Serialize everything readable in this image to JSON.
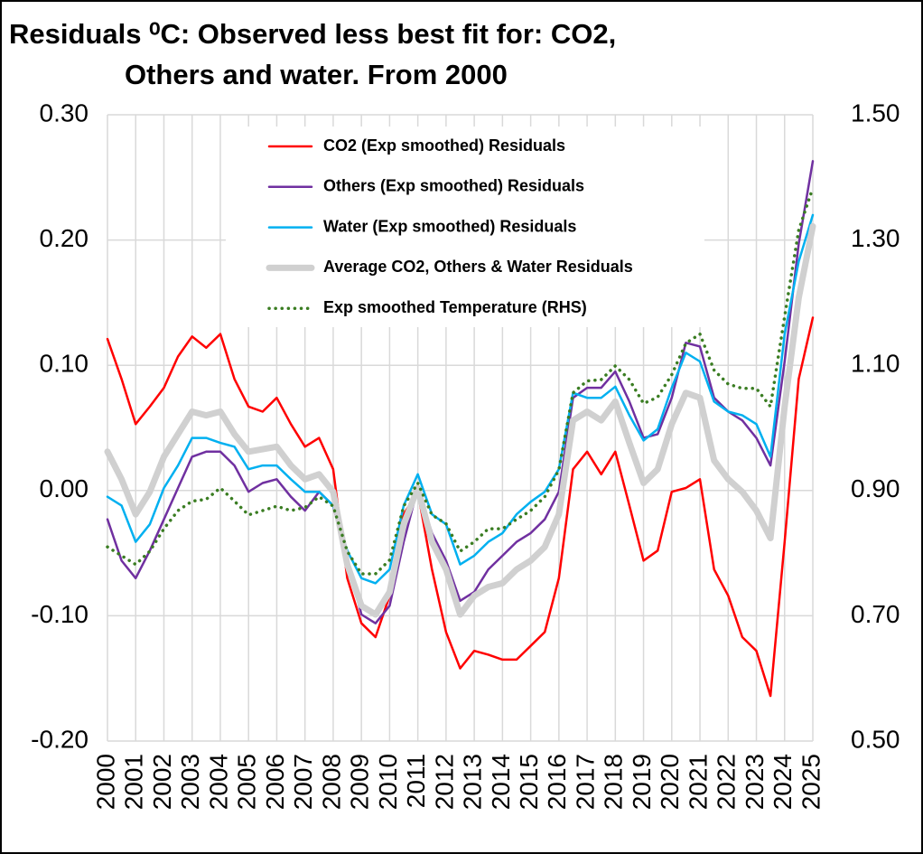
{
  "chart_data": {
    "type": "line",
    "title": [
      "Residuals ⁰C: Observed less best fit for: CO2,",
      "Others and water.  From 2000"
    ],
    "xlim": [
      2000,
      2025
    ],
    "xticks": [
      2000,
      2001,
      2002,
      2003,
      2004,
      2005,
      2006,
      2007,
      2008,
      2009,
      2010,
      2011,
      2012,
      2013,
      2014,
      2015,
      2016,
      2017,
      2018,
      2019,
      2020,
      2021,
      2022,
      2023,
      2024,
      2025
    ],
    "ylim": [
      -0.2,
      0.3
    ],
    "yticks": [
      {
        "value": -0.2,
        "label": "-0.20"
      },
      {
        "value": -0.1,
        "label": "-0.10"
      },
      {
        "value": 0,
        "label": "0.00"
      },
      {
        "value": 0.1,
        "label": "0.10"
      },
      {
        "value": 0.2,
        "label": "0.20"
      },
      {
        "value": 0.3,
        "label": "0.30"
      }
    ],
    "y2lim": [
      0.5,
      1.5
    ],
    "y2ticks": [
      {
        "value": 0.5,
        "label": "0.50"
      },
      {
        "value": 0.7,
        "label": "0.70"
      },
      {
        "value": 0.9,
        "label": "0.90"
      },
      {
        "value": 1.1,
        "label": "1.10"
      },
      {
        "value": 1.3,
        "label": "1.30"
      },
      {
        "value": 1.5,
        "label": "1.50"
      }
    ],
    "grid": true,
    "legend": "upper center",
    "x": [
      2000,
      2000.5,
      2001,
      2001.5,
      2002,
      2002.5,
      2003,
      2003.5,
      2004,
      2004.5,
      2005,
      2005.5,
      2006,
      2006.5,
      2007,
      2007.5,
      2008,
      2008.5,
      2009,
      2009.5,
      2010,
      2010.5,
      2011,
      2011.5,
      2012,
      2012.5,
      2013,
      2013.5,
      2014,
      2014.5,
      2015,
      2015.5,
      2016,
      2016.5,
      2017,
      2017.5,
      2018,
      2018.5,
      2019,
      2019.5,
      2020,
      2020.5,
      2021,
      2021.5,
      2022,
      2022.5,
      2023,
      2023.5,
      2024,
      2024.5,
      2025
    ],
    "series": [
      {
        "name": "CO2 (Exp smoothed) Residuals",
        "color": "#ff0000",
        "style": "solid",
        "width": 2.5,
        "values": [
          0.121,
          0.089,
          0.053,
          0.067,
          0.082,
          0.107,
          0.123,
          0.114,
          0.125,
          0.089,
          0.067,
          0.063,
          0.074,
          0.053,
          0.035,
          0.042,
          0.017,
          -0.07,
          -0.106,
          -0.117,
          -0.084,
          -0.019,
          -0.001,
          -0.063,
          -0.113,
          -0.142,
          -0.128,
          -0.131,
          -0.135,
          -0.135,
          -0.124,
          -0.113,
          -0.07,
          0.017,
          0.031,
          0.013,
          0.031,
          -0.012,
          -0.056,
          -0.048,
          -0.001,
          0.002,
          0.009,
          -0.063,
          -0.084,
          -0.117,
          -0.128,
          -0.164,
          -0.041,
          0.089,
          0.138
        ]
      },
      {
        "name": "Others (Exp smoothed) Residuals",
        "color": "#7030a0",
        "style": "solid",
        "width": 2.5,
        "values": [
          -0.023,
          -0.056,
          -0.07,
          -0.048,
          -0.023,
          0.002,
          0.027,
          0.031,
          0.031,
          0.02,
          -0.001,
          0.006,
          0.009,
          -0.005,
          -0.016,
          -0.001,
          -0.012,
          -0.056,
          -0.099,
          -0.106,
          -0.092,
          -0.041,
          0.002,
          -0.034,
          -0.056,
          -0.088,
          -0.081,
          -0.063,
          -0.052,
          -0.041,
          -0.034,
          -0.023,
          -0.001,
          0.074,
          0.082,
          0.082,
          0.095,
          0.071,
          0.042,
          0.045,
          0.074,
          0.118,
          0.115,
          0.074,
          0.063,
          0.056,
          0.042,
          0.02,
          0.103,
          0.197,
          0.263
        ]
      },
      {
        "name": "Water (Exp smoothed) Residuals",
        "color": "#00b0f0",
        "style": "solid",
        "width": 2.5,
        "values": [
          -0.005,
          -0.012,
          -0.041,
          -0.027,
          0.002,
          0.02,
          0.042,
          0.042,
          0.038,
          0.035,
          0.017,
          0.02,
          0.02,
          0.009,
          -0.001,
          -0.001,
          -0.012,
          -0.048,
          -0.07,
          -0.074,
          -0.063,
          -0.012,
          0.013,
          -0.019,
          -0.027,
          -0.059,
          -0.052,
          -0.041,
          -0.034,
          -0.019,
          -0.009,
          -0.001,
          0.017,
          0.078,
          0.074,
          0.074,
          0.083,
          0.06,
          0.04,
          0.049,
          0.082,
          0.11,
          0.103,
          0.071,
          0.063,
          0.06,
          0.053,
          0.027,
          0.125,
          0.183,
          0.22
        ]
      },
      {
        "name": "Average CO2, Others & Water Residuals",
        "color": "#d0d0d0",
        "style": "solid",
        "width": 7,
        "values": [
          0.031,
          0.009,
          -0.019,
          -0.001,
          0.027,
          0.045,
          0.063,
          0.06,
          0.063,
          0.045,
          0.031,
          0.033,
          0.035,
          0.02,
          0.009,
          0.013,
          -0.001,
          -0.059,
          -0.092,
          -0.099,
          -0.081,
          -0.027,
          0.002,
          -0.041,
          -0.063,
          -0.099,
          -0.084,
          -0.077,
          -0.074,
          -0.063,
          -0.056,
          -0.045,
          -0.019,
          0.056,
          0.063,
          0.056,
          0.071,
          0.038,
          0.006,
          0.017,
          0.053,
          0.078,
          0.074,
          0.024,
          0.009,
          -0.001,
          -0.016,
          -0.038,
          0.067,
          0.154,
          0.211
        ]
      },
      {
        "name": "Exp smoothed Temperature (RHS)",
        "color": "#3a7d22",
        "style": "dotted",
        "width": 3.5,
        "axis": "y2",
        "values": [
          0.81,
          0.796,
          0.782,
          0.803,
          0.839,
          0.868,
          0.883,
          0.886,
          0.904,
          0.883,
          0.861,
          0.868,
          0.875,
          0.868,
          0.873,
          0.89,
          0.875,
          0.803,
          0.767,
          0.767,
          0.789,
          0.875,
          0.912,
          0.861,
          0.847,
          0.803,
          0.818,
          0.839,
          0.839,
          0.854,
          0.868,
          0.89,
          0.933,
          1.056,
          1.075,
          1.077,
          1.099,
          1.077,
          1.039,
          1.049,
          1.085,
          1.135,
          1.15,
          1.092,
          1.07,
          1.063,
          1.063,
          1.034,
          1.178,
          1.316,
          1.383
        ]
      }
    ]
  }
}
